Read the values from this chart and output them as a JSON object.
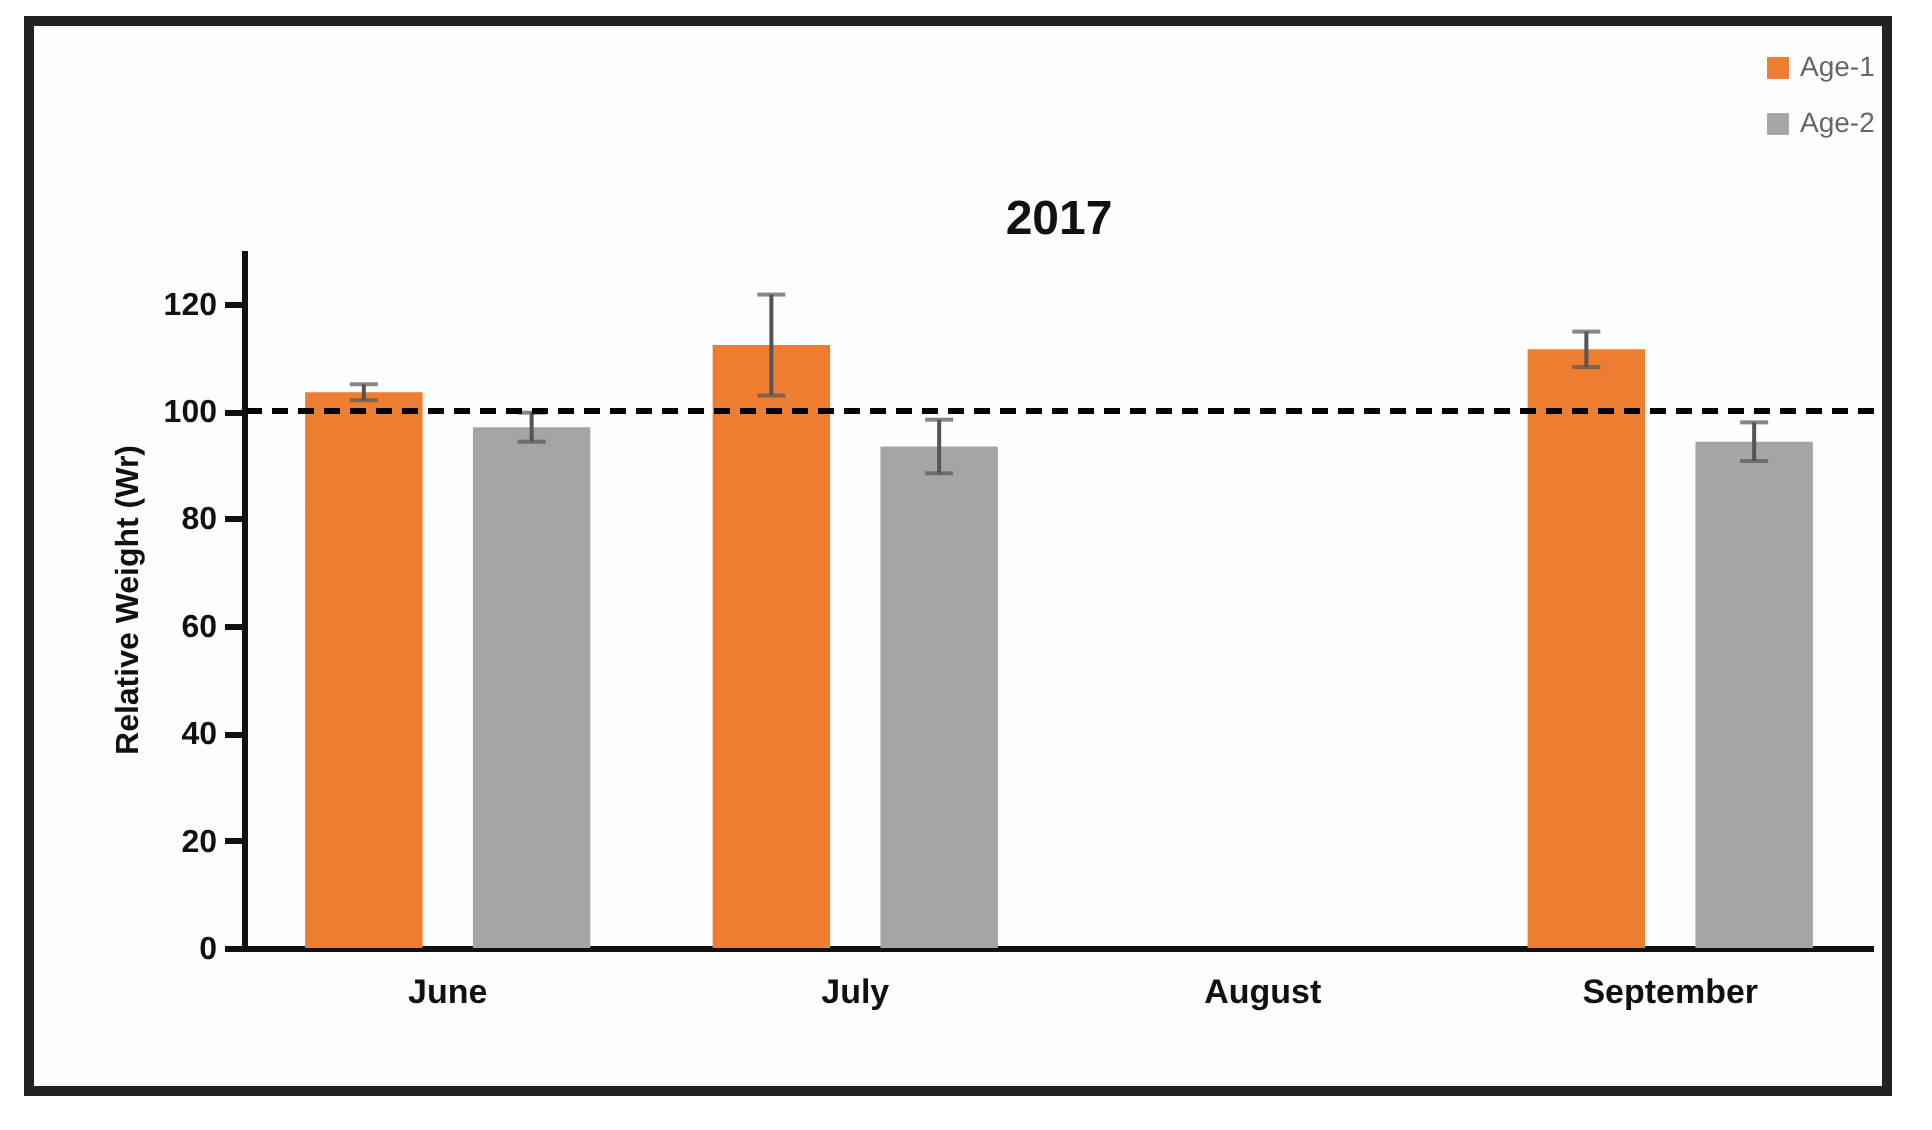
{
  "chart_data": {
    "type": "bar",
    "title": "2017",
    "ylabel": "Relative Weight (Wr)",
    "categories": [
      "June",
      "July",
      "August",
      "September"
    ],
    "series": [
      {
        "name": "Age-1",
        "color": "#ed7d31",
        "values": [
          103.5,
          112.3,
          null,
          111.5
        ],
        "errors": [
          1.5,
          9.4,
          null,
          3.3
        ]
      },
      {
        "name": "Age-2",
        "color": "#a5a5a5",
        "values": [
          97,
          93.4,
          null,
          94.3
        ],
        "errors": [
          2.7,
          5,
          null,
          3.6
        ]
      }
    ],
    "ylim": [
      0,
      130
    ],
    "yticks": [
      0,
      20,
      40,
      60,
      80,
      100,
      120
    ],
    "ref_lines": [
      {
        "axis": "y",
        "value": 100,
        "line_style": "dashed",
        "color": "#000000"
      }
    ],
    "grid": false,
    "legend": "top right"
  }
}
